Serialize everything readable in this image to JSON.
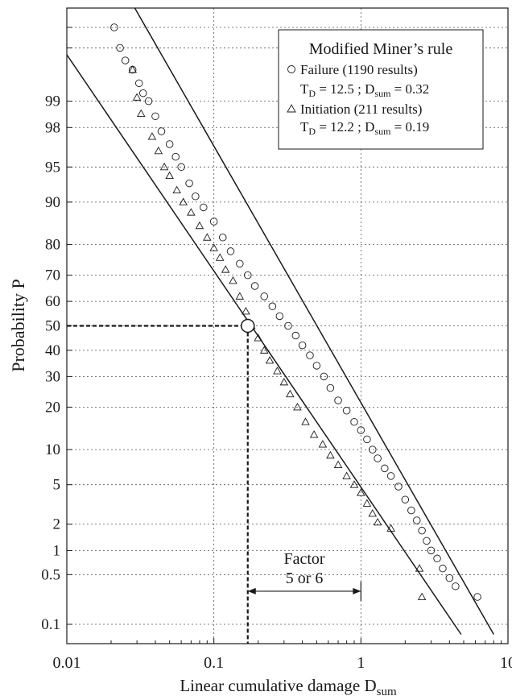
{
  "chart_data": {
    "type": "scatter",
    "title": "",
    "xlabel": "Linear cumulative damage",
    "xlabel_sub": "sum",
    "xlabel_prefix": "D",
    "ylabel": "Probability P",
    "x_scale": "log",
    "y_scale": "normal-probability",
    "xlim": [
      0.01,
      10
    ],
    "ylim": [
      0.05,
      99.95
    ],
    "x_ticks": [
      {
        "value": 0.01,
        "label": "0.01"
      },
      {
        "value": 0.1,
        "label": "0.1"
      },
      {
        "value": 1,
        "label": "1"
      },
      {
        "value": 10,
        "label": "10"
      }
    ],
    "y_ticks": [
      {
        "value": 0.1,
        "label": "0.1"
      },
      {
        "value": 0.5,
        "label": "0.5"
      },
      {
        "value": 1,
        "label": "1"
      },
      {
        "value": 2,
        "label": "2"
      },
      {
        "value": 5,
        "label": "5"
      },
      {
        "value": 10,
        "label": "10"
      },
      {
        "value": 20,
        "label": "20"
      },
      {
        "value": 30,
        "label": "30"
      },
      {
        "value": 40,
        "label": "40"
      },
      {
        "value": 50,
        "label": "50"
      },
      {
        "value": 60,
        "label": "60"
      },
      {
        "value": 70,
        "label": "70"
      },
      {
        "value": 80,
        "label": "80"
      },
      {
        "value": 90,
        "label": "90"
      },
      {
        "value": 95,
        "label": "95"
      },
      {
        "value": 98,
        "label": "98"
      },
      {
        "value": 99,
        "label": "99"
      }
    ],
    "y_grid_extra": [
      99.8,
      99.9
    ],
    "grid": true,
    "legend": {
      "placement": "top-right",
      "title": "Modified Miner’s rule",
      "entries": [
        {
          "marker": "circle",
          "label": "Failure (1190 results)",
          "param_line": "T_D = 12.5 ; D_sum = 0.32",
          "t_prefix": "T",
          "t_sub": "D",
          "t_value": " = 12.5 ; ",
          "d_prefix": "D",
          "d_sub": "sum",
          "d_value": " = 0.32"
        },
        {
          "marker": "triangle",
          "label": "Initiation (211 results)",
          "param_line": "T_D = 12.2 ; D_sum = 0.19",
          "t_prefix": "T",
          "t_sub": "D",
          "t_value": " = 12.2 ; ",
          "d_prefix": "D",
          "d_sub": "sum",
          "d_value": " = 0.19"
        }
      ]
    },
    "series": [
      {
        "name": "Failure (1190 results)",
        "marker": "circle",
        "median": 0.32,
        "T_D": 12.5,
        "points": [
          [
            0.019,
            99.97
          ],
          [
            0.021,
            99.9
          ],
          [
            0.023,
            99.8
          ],
          [
            0.025,
            99.7
          ],
          [
            0.028,
            99.6
          ],
          [
            0.031,
            99.4
          ],
          [
            0.033,
            99.2
          ],
          [
            0.036,
            99
          ],
          [
            0.04,
            98.5
          ],
          [
            0.044,
            97.8
          ],
          [
            0.05,
            97
          ],
          [
            0.055,
            96
          ],
          [
            0.06,
            95
          ],
          [
            0.068,
            93
          ],
          [
            0.075,
            91
          ],
          [
            0.085,
            89
          ],
          [
            0.1,
            86
          ],
          [
            0.115,
            82
          ],
          [
            0.13,
            78
          ],
          [
            0.15,
            74
          ],
          [
            0.17,
            70
          ],
          [
            0.19,
            66
          ],
          [
            0.22,
            62
          ],
          [
            0.25,
            58
          ],
          [
            0.28,
            54
          ],
          [
            0.32,
            50
          ],
          [
            0.36,
            46
          ],
          [
            0.4,
            42
          ],
          [
            0.45,
            38
          ],
          [
            0.5,
            34
          ],
          [
            0.56,
            30
          ],
          [
            0.62,
            26
          ],
          [
            0.7,
            22
          ],
          [
            0.8,
            19
          ],
          [
            0.9,
            16
          ],
          [
            1.0,
            14
          ],
          [
            1.1,
            12
          ],
          [
            1.2,
            10
          ],
          [
            1.3,
            8.5
          ],
          [
            1.45,
            7
          ],
          [
            1.6,
            6
          ],
          [
            1.8,
            4.8
          ],
          [
            2.0,
            3.6
          ],
          [
            2.2,
            2.8
          ],
          [
            2.4,
            2.2
          ],
          [
            2.6,
            1.7
          ],
          [
            2.8,
            1.3
          ],
          [
            3.0,
            1.0
          ],
          [
            3.3,
            0.8
          ],
          [
            3.6,
            0.6
          ],
          [
            4.0,
            0.45
          ],
          [
            4.4,
            0.35
          ],
          [
            6.2,
            0.25
          ]
        ]
      },
      {
        "name": "Initiation (211 results)",
        "marker": "triangle",
        "median": 0.19,
        "T_D": 12.2,
        "points": [
          [
            0.028,
            99.6
          ],
          [
            0.03,
            99.1
          ],
          [
            0.032,
            98.6
          ],
          [
            0.038,
            97.5
          ],
          [
            0.042,
            96.5
          ],
          [
            0.046,
            95
          ],
          [
            0.05,
            94
          ],
          [
            0.056,
            92
          ],
          [
            0.062,
            90
          ],
          [
            0.07,
            88
          ],
          [
            0.08,
            85
          ],
          [
            0.09,
            82
          ],
          [
            0.1,
            79
          ],
          [
            0.11,
            76
          ],
          [
            0.12,
            72
          ],
          [
            0.135,
            68
          ],
          [
            0.15,
            62
          ],
          [
            0.165,
            56
          ],
          [
            0.18,
            50
          ],
          [
            0.2,
            45
          ],
          [
            0.22,
            40
          ],
          [
            0.24,
            36
          ],
          [
            0.27,
            32
          ],
          [
            0.3,
            28
          ],
          [
            0.33,
            24
          ],
          [
            0.37,
            20
          ],
          [
            0.42,
            16
          ],
          [
            0.48,
            13
          ],
          [
            0.55,
            11
          ],
          [
            0.62,
            9
          ],
          [
            0.7,
            7.5
          ],
          [
            0.8,
            6
          ],
          [
            0.9,
            5
          ],
          [
            1.0,
            4.2
          ],
          [
            1.1,
            3.3
          ],
          [
            1.2,
            2.6
          ],
          [
            1.3,
            2.1
          ],
          [
            1.6,
            1.8
          ],
          [
            2.5,
            0.6
          ],
          [
            2.6,
            0.25
          ]
        ]
      }
    ],
    "fit_lines": [
      {
        "series": "Failure (1190 results)",
        "from": [
          0.02,
          99.99
        ],
        "to": [
          8,
          0.07
        ]
      },
      {
        "series": "Initiation (211 results)",
        "from": [
          0.01,
          99.75
        ],
        "to": [
          4.8,
          0.07
        ]
      }
    ],
    "annotations": [
      {
        "type": "median-marker",
        "x": 0.17,
        "y": 50
      },
      {
        "type": "dimension",
        "label_line1": "Factor",
        "label_line2": "5 or 6",
        "from_x": 0.17,
        "to_x": 1,
        "y": 0.3
      }
    ]
  }
}
